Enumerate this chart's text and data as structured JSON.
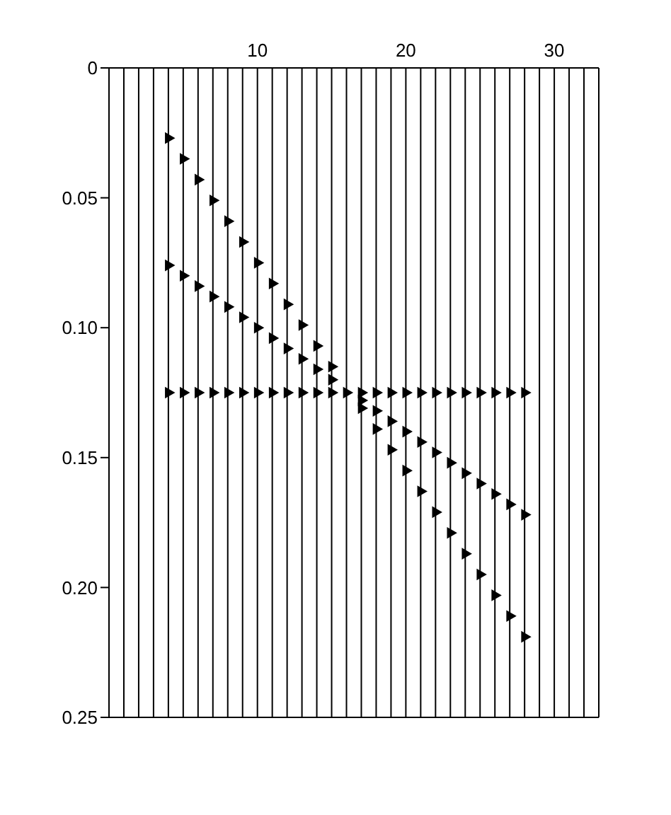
{
  "chart_data": {
    "type": "scatter",
    "marker": "triangle",
    "grid": "x",
    "xlim": [
      0,
      33
    ],
    "xticks": [
      {
        "value": 1,
        "label": null
      },
      {
        "value": 2,
        "label": null
      },
      {
        "value": 3,
        "label": null
      },
      {
        "value": 4,
        "label": null
      },
      {
        "value": 5,
        "label": null
      },
      {
        "value": 6,
        "label": null
      },
      {
        "value": 7,
        "label": null
      },
      {
        "value": 8,
        "label": null
      },
      {
        "value": 9,
        "label": null
      },
      10,
      {
        "value": 11,
        "label": null
      },
      {
        "value": 12,
        "label": null
      },
      {
        "value": 13,
        "label": null
      },
      {
        "value": 14,
        "label": null
      },
      {
        "value": 15,
        "label": null
      },
      {
        "value": 16,
        "label": null
      },
      {
        "value": 17,
        "label": null
      },
      {
        "value": 18,
        "label": null
      },
      {
        "value": 19,
        "label": null
      },
      20,
      {
        "value": 21,
        "label": null
      },
      {
        "value": 22,
        "label": null
      },
      {
        "value": 23,
        "label": null
      },
      {
        "value": 24,
        "label": null
      },
      {
        "value": 25,
        "label": null
      },
      {
        "value": 26,
        "label": null
      },
      {
        "value": 27,
        "label": null
      },
      {
        "value": 28,
        "label": null
      },
      {
        "value": 29,
        "label": null
      },
      30,
      {
        "value": 31,
        "label": null
      },
      {
        "value": 32,
        "label": null
      }
    ],
    "ylim": [
      0.25,
      0
    ],
    "yticks": [
      0,
      0.05,
      {
        "value": 0.1,
        "label": "0.10"
      },
      0.15,
      {
        "value": 0.2,
        "label": "0.20"
      },
      0.25
    ],
    "x": [
      4,
      5,
      6,
      7,
      8,
      9,
      10,
      11,
      12,
      13,
      14,
      15,
      16,
      17,
      18,
      19,
      20,
      21,
      22,
      23,
      24,
      25,
      26,
      27,
      28
    ],
    "series": [
      {
        "color": "#000000",
        "values": [
          0.125,
          0.125,
          0.125,
          0.125,
          0.125,
          0.125,
          0.125,
          0.125,
          0.125,
          0.125,
          0.125,
          0.125,
          0.125,
          0.125,
          0.125,
          0.125,
          0.125,
          0.125,
          0.125,
          0.125,
          0.125,
          0.125,
          0.125,
          0.125,
          0.125
        ]
      },
      {
        "color": "#000000",
        "values": [
          0.027,
          0.035,
          0.043,
          0.051,
          0.059,
          0.067,
          0.075,
          0.083,
          0.091,
          0.099,
          0.107,
          0.115,
          null,
          0.131,
          0.139,
          0.147,
          0.155,
          0.163,
          0.171,
          0.179,
          0.187,
          0.195,
          0.203,
          0.211,
          0.219
        ]
      },
      {
        "color": "#000000",
        "values": [
          0.076,
          0.08,
          0.084,
          0.088,
          0.092,
          0.096,
          0.1,
          0.104,
          0.108,
          0.112,
          0.116,
          0.12,
          null,
          0.128,
          0.132,
          0.136,
          0.14,
          0.144,
          0.148,
          0.152,
          0.156,
          0.16,
          0.164,
          0.168,
          0.172
        ]
      }
    ]
  }
}
